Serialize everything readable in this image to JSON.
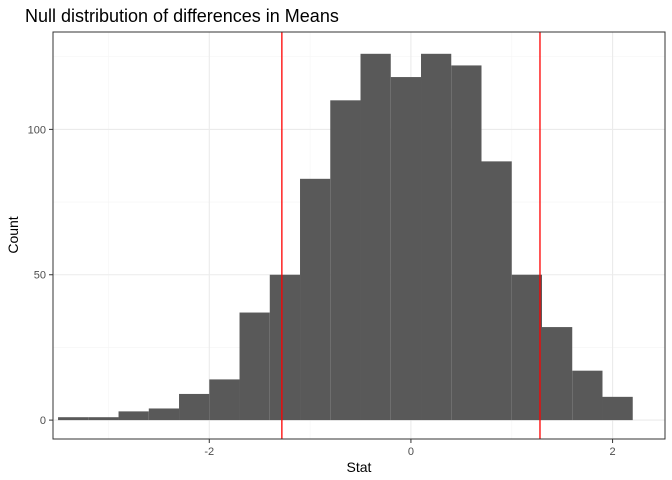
{
  "chart_data": {
    "type": "bar",
    "title": "Null distribution of differences in Means",
    "xlabel": "Stat",
    "ylabel": "Count",
    "xlim": [
      -3.55,
      2.52
    ],
    "ylim": [
      -6.5,
      133.5
    ],
    "x_ticks": [
      {
        "value": -2,
        "label": "-2"
      },
      {
        "value": 0,
        "label": "0"
      },
      {
        "value": 2,
        "label": "2"
      }
    ],
    "y_ticks": [
      {
        "value": 0,
        "label": "0"
      },
      {
        "value": 50,
        "label": "50"
      },
      {
        "value": 100,
        "label": "100"
      }
    ],
    "bins": [
      {
        "x0": -3.5,
        "x1": -3.2,
        "count": 1
      },
      {
        "x0": -3.2,
        "x1": -2.9,
        "count": 1
      },
      {
        "x0": -2.9,
        "x1": -2.6,
        "count": 3
      },
      {
        "x0": -2.6,
        "x1": -2.3,
        "count": 4
      },
      {
        "x0": -2.3,
        "x1": -2.0,
        "count": 9
      },
      {
        "x0": -2.0,
        "x1": -1.7,
        "count": 14
      },
      {
        "x0": -1.7,
        "x1": -1.4,
        "count": 37
      },
      {
        "x0": -1.4,
        "x1": -1.1,
        "count": 50
      },
      {
        "x0": -1.1,
        "x1": -0.8,
        "count": 83
      },
      {
        "x0": -0.8,
        "x1": -0.5,
        "count": 110
      },
      {
        "x0": -0.5,
        "x1": -0.2,
        "count": 126
      },
      {
        "x0": -0.2,
        "x1": 0.1,
        "count": 118
      },
      {
        "x0": 0.1,
        "x1": 0.4,
        "count": 126
      },
      {
        "x0": 0.4,
        "x1": 0.7,
        "count": 122
      },
      {
        "x0": 0.7,
        "x1": 1.0,
        "count": 89
      },
      {
        "x0": 1.0,
        "x1": 1.3,
        "count": 50
      },
      {
        "x0": 1.3,
        "x1": 1.6,
        "count": 32
      },
      {
        "x0": 1.6,
        "x1": 1.9,
        "count": 17
      },
      {
        "x0": 1.9,
        "x1": 2.2,
        "count": 8
      }
    ],
    "vlines": [
      -1.28,
      1.28
    ],
    "colors": {
      "bars": "#595959",
      "vlines": "#ff0000",
      "grid_major": "#ebebeb",
      "grid_minor": "#f5f5f5",
      "panel_border": "#333333"
    },
    "grid": true,
    "legend": "none"
  }
}
